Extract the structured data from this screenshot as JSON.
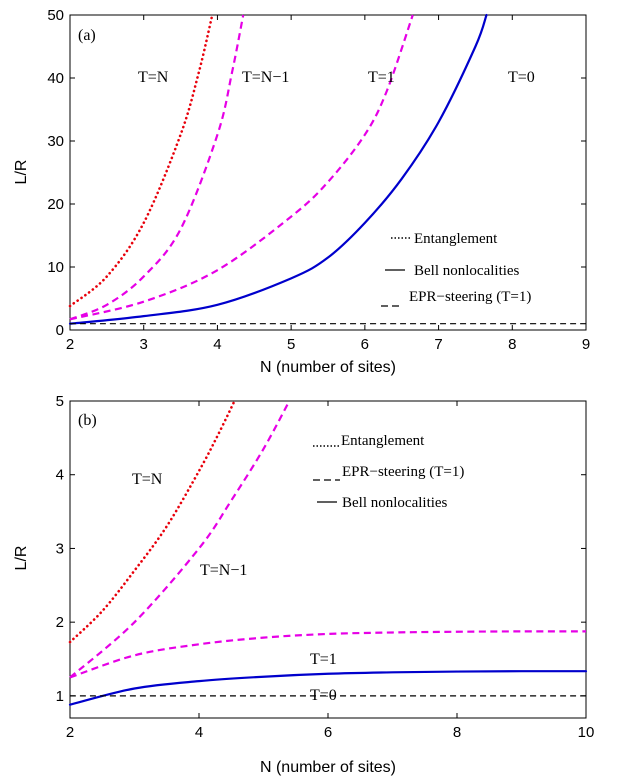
{
  "chart_data": [
    {
      "type": "line",
      "panel_label": "(a)",
      "xlabel": "N (number of sites)",
      "ylabel": "L/R",
      "xlim": [
        2,
        9
      ],
      "ylim": [
        0,
        50
      ],
      "xticks": [
        "2",
        "3",
        "4",
        "5",
        "6",
        "7",
        "8",
        "9"
      ],
      "yticks": [
        "0",
        "10",
        "20",
        "30",
        "40",
        "50"
      ],
      "legend": {
        "placement": "center-right",
        "entries": [
          {
            "label": "Entanglement",
            "style": "dotted"
          },
          {
            "label": "Bell nonlocalities",
            "style": "solid"
          },
          {
            "label": "EPR−steering (T=1)",
            "style": "dashed"
          }
        ]
      },
      "series": [
        {
          "name": "T=N",
          "style": "dotted",
          "color": "#e8000b",
          "x": [
            2,
            2.5,
            3,
            3.5,
            3.75,
            3.93
          ],
          "y": [
            3.8,
            8.5,
            17,
            31,
            41,
            50
          ]
        },
        {
          "name": "T=N−1",
          "style": "dashed",
          "color": "#e600e6",
          "x": [
            2,
            2.5,
            3,
            3.5,
            4,
            4.2,
            4.35
          ],
          "y": [
            1.7,
            4,
            8.5,
            16,
            31,
            41,
            50
          ]
        },
        {
          "name": "T=1",
          "style": "dashed",
          "color": "#e600e6",
          "x": [
            2,
            3,
            4,
            5,
            5.5,
            6,
            6.3,
            6.65
          ],
          "y": [
            1.7,
            4.5,
            9.5,
            18,
            23.5,
            31,
            38,
            50
          ]
        },
        {
          "name": "T=0",
          "style": "solid",
          "color": "#0000cc",
          "x": [
            2,
            3,
            4,
            5,
            5.5,
            6,
            6.5,
            7,
            7.5,
            7.65
          ],
          "y": [
            1,
            2.2,
            4,
            8.2,
            11.5,
            17,
            24,
            33,
            45,
            50
          ]
        },
        {
          "name": "",
          "style": "dashed-black",
          "color": "#000000",
          "x": [
            2,
            9
          ],
          "y": [
            1,
            1
          ]
        }
      ]
    },
    {
      "type": "line",
      "panel_label": "(b)",
      "xlabel": "N (number of sites)",
      "ylabel": "L/R",
      "xlim": [
        2,
        10
      ],
      "ylim": [
        0.7,
        5
      ],
      "xticks": [
        "2",
        "4",
        "6",
        "8",
        "10"
      ],
      "yticks": [
        "1",
        "2",
        "3",
        "4",
        "5"
      ],
      "legend": {
        "placement": "top-right",
        "entries": [
          {
            "label": "Entanglement",
            "style": "dotted"
          },
          {
            "label": "EPR−steering (T=1)",
            "style": "dashed"
          },
          {
            "label": "Bell nonlocalities",
            "style": "solid"
          }
        ]
      },
      "series": [
        {
          "name": "T=N",
          "style": "dotted",
          "color": "#e8000b",
          "x": [
            2,
            2.5,
            3,
            3.5,
            4,
            4.3,
            4.55
          ],
          "y": [
            1.73,
            2.15,
            2.7,
            3.3,
            4.05,
            4.55,
            5
          ]
        },
        {
          "name": "T=N−1",
          "style": "dashed",
          "color": "#e600e6",
          "x": [
            2,
            3,
            4,
            4.5,
            5,
            5.4
          ],
          "y": [
            1.25,
            2.0,
            3.0,
            3.65,
            4.35,
            5
          ]
        },
        {
          "name": "T=1",
          "style": "dashed",
          "color": "#e600e6",
          "x": [
            2,
            3,
            4,
            5,
            6,
            7,
            8,
            9,
            10
          ],
          "y": [
            1.25,
            1.55,
            1.7,
            1.79,
            1.84,
            1.86,
            1.87,
            1.875,
            1.875
          ]
        },
        {
          "name": "T=0",
          "style": "solid",
          "color": "#0000cc",
          "x": [
            2,
            3,
            4,
            5,
            6,
            7,
            8,
            9,
            10
          ],
          "y": [
            0.88,
            1.1,
            1.2,
            1.26,
            1.3,
            1.32,
            1.33,
            1.335,
            1.335
          ]
        },
        {
          "name": "",
          "style": "dashed-black",
          "color": "#000000",
          "x": [
            2,
            10
          ],
          "y": [
            1,
            1
          ]
        }
      ]
    }
  ]
}
